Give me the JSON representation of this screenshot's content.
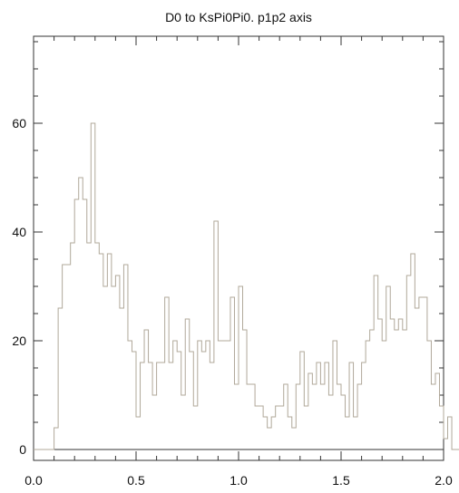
{
  "chart_data": {
    "type": "histogram",
    "title": "D0 to KsPi0Pi0. p1p2 axis",
    "xlabel": "",
    "ylabel": "",
    "xlim": [
      0.0,
      2.0
    ],
    "ylim": [
      -2,
      76
    ],
    "grid": false,
    "x_ticks": [
      0.0,
      0.5,
      1.0,
      1.5,
      2.0
    ],
    "x_tick_labels": [
      "0.0",
      "0.5",
      "1.0",
      "1.5",
      "2.0"
    ],
    "y_ticks": [
      0,
      20,
      40,
      60
    ],
    "y_tick_labels": [
      "0",
      "20",
      "40",
      "60"
    ],
    "bin_edges_start": 0.0,
    "bin_width": 0.02,
    "values": [
      0,
      0,
      0,
      0,
      0,
      4,
      26,
      34,
      34,
      38,
      46,
      50,
      46,
      38,
      60,
      38,
      36,
      30,
      36,
      30,
      32,
      26,
      34,
      20,
      18,
      6,
      16,
      22,
      16,
      10,
      16,
      16,
      28,
      16,
      20,
      18,
      10,
      24,
      18,
      8,
      20,
      18,
      20,
      16,
      42,
      20,
      20,
      20,
      28,
      12,
      30,
      22,
      12,
      12,
      8,
      8,
      6,
      4,
      6,
      8,
      8,
      12,
      6,
      4,
      12,
      18,
      8,
      14,
      12,
      16,
      12,
      16,
      10,
      20,
      12,
      10,
      6,
      16,
      6,
      12,
      16,
      20,
      22,
      32,
      24,
      20,
      30,
      24,
      22,
      24,
      22,
      32,
      36,
      26,
      28,
      28,
      20,
      12,
      14,
      8,
      2,
      6,
      0,
      0,
      0
    ]
  }
}
